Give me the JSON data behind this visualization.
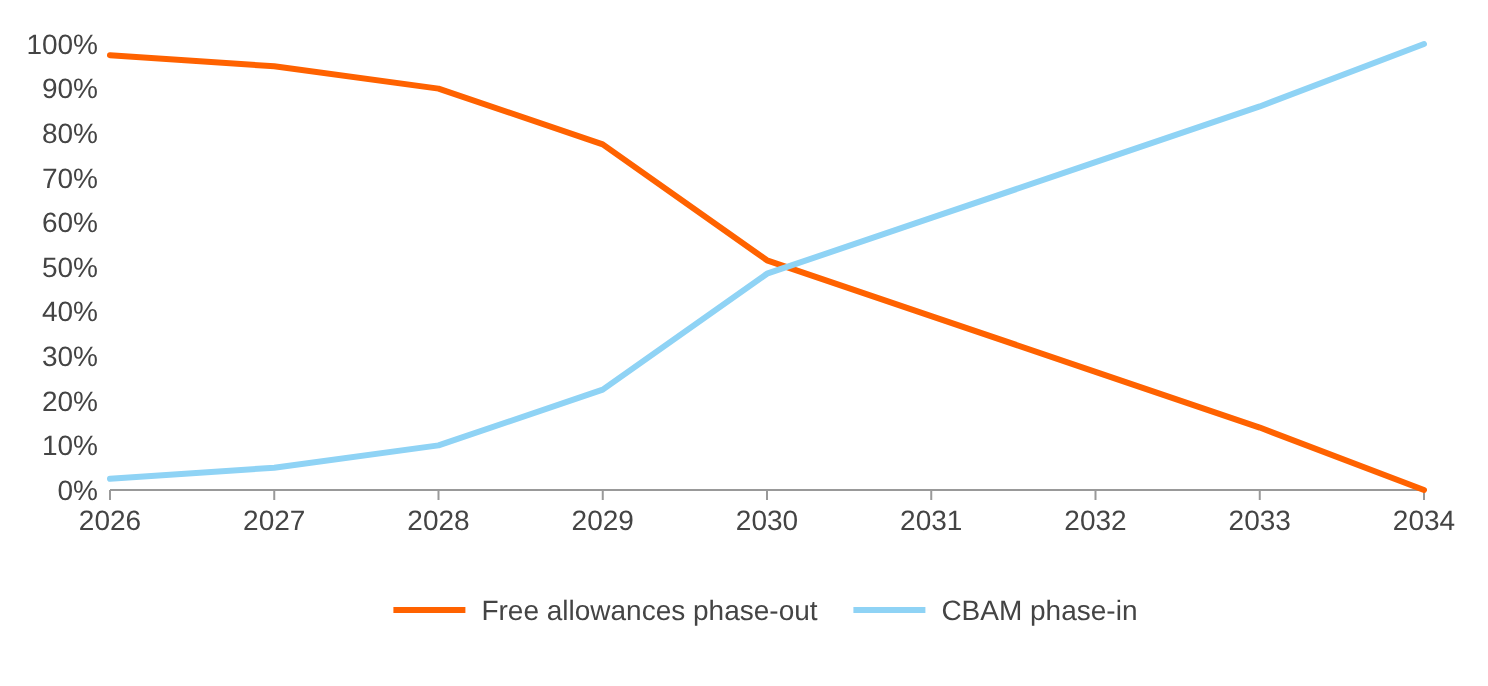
{
  "chart_data": {
    "type": "line",
    "x": [
      2026,
      2027,
      2028,
      2029,
      2030,
      2031,
      2032,
      2033,
      2034
    ],
    "xlim": [
      2026,
      2034
    ],
    "xticks": [
      2026,
      2027,
      2028,
      2029,
      2030,
      2031,
      2032,
      2033,
      2034
    ],
    "ylim": [
      0,
      100
    ],
    "yticks": [
      {
        "value": 0,
        "label": "0%"
      },
      {
        "value": 10,
        "label": "10%"
      },
      {
        "value": 20,
        "label": "20%"
      },
      {
        "value": 30,
        "label": "30%"
      },
      {
        "value": 40,
        "label": "40%"
      },
      {
        "value": 50,
        "label": "50%"
      },
      {
        "value": 60,
        "label": "60%"
      },
      {
        "value": 70,
        "label": "70%"
      },
      {
        "value": 80,
        "label": "80%"
      },
      {
        "value": 90,
        "label": "90%"
      },
      {
        "value": 100,
        "label": "100%"
      }
    ],
    "series": [
      {
        "name": "Free allowances phase-out",
        "color": "#ff6200",
        "values": [
          97.5,
          95,
          90,
          77.5,
          51.5,
          39,
          26.5,
          14,
          0
        ]
      },
      {
        "name": "CBAM phase-in",
        "color": "#8fd3f5",
        "values": [
          2.5,
          5,
          10,
          22.5,
          48.5,
          61,
          73.5,
          86,
          100
        ]
      }
    ],
    "grid": false,
    "legend": "bottom",
    "marker": "none",
    "line_style": "solid"
  }
}
